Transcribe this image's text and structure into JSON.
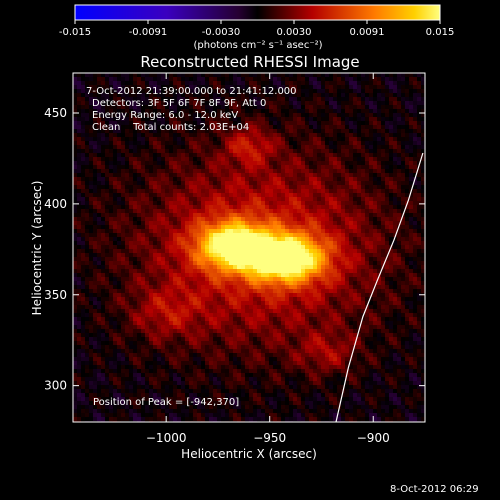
{
  "chart_data": {
    "type": "heatmap",
    "title": "Reconstructed RHESSI Image",
    "xlabel": "Heliocentric X (arcsec)",
    "ylabel": "Heliocentric Y (arcsec)",
    "xlim": [
      -1045,
      -875
    ],
    "ylim": [
      280,
      472
    ],
    "x_ticks": [
      -1000,
      -950,
      -900
    ],
    "y_ticks": [
      300,
      350,
      400,
      450
    ],
    "colorbar": {
      "range": [
        -0.015,
        0.015
      ],
      "ticks": [
        "-0.015",
        "-0.0091",
        "-0.0030",
        "0.0030",
        "0.0091",
        "0.015"
      ],
      "unit_label": "(photons cm⁻² s⁻¹ asec⁻²)"
    },
    "annotations": {
      "time_range": "7-Oct-2012 21:39:00.000 to 21:41:12.000",
      "detectors": "Detectors: 3F 5F 6F 7F 8F 9F, Att 0",
      "energy_range": "Energy Range: 6.0 - 12.0 keV",
      "clean": "Clean    Total counts: 2.03E+04",
      "peak": "Position of Peak = [-942,370]"
    },
    "peak_position": [
      -942,
      370
    ],
    "sources": [
      {
        "x": -942,
        "y": 370,
        "sx": 13,
        "sy": 9,
        "amp": 0.0145
      },
      {
        "x": -968,
        "y": 377,
        "sx": 12,
        "sy": 9,
        "amp": 0.013
      },
      {
        "x": -955,
        "y": 375,
        "sx": 42,
        "sy": 38,
        "amp": 0.006
      },
      {
        "x": -960,
        "y": 432,
        "sx": 8,
        "sy": 7,
        "amp": 0.004
      },
      {
        "x": -1000,
        "y": 340,
        "sx": 12,
        "sy": 10,
        "amp": 0.003
      },
      {
        "x": -922,
        "y": 318,
        "sx": 10,
        "sy": 8,
        "amp": 0.003
      }
    ],
    "limb_curve": [
      [
        -918,
        280
      ],
      [
        -912,
        310
      ],
      [
        -905,
        338
      ],
      [
        -898,
        358
      ],
      [
        -890,
        380
      ],
      [
        -883,
        402
      ],
      [
        -876,
        428
      ]
    ],
    "footer_date": "8-Oct-2012 06:29"
  }
}
